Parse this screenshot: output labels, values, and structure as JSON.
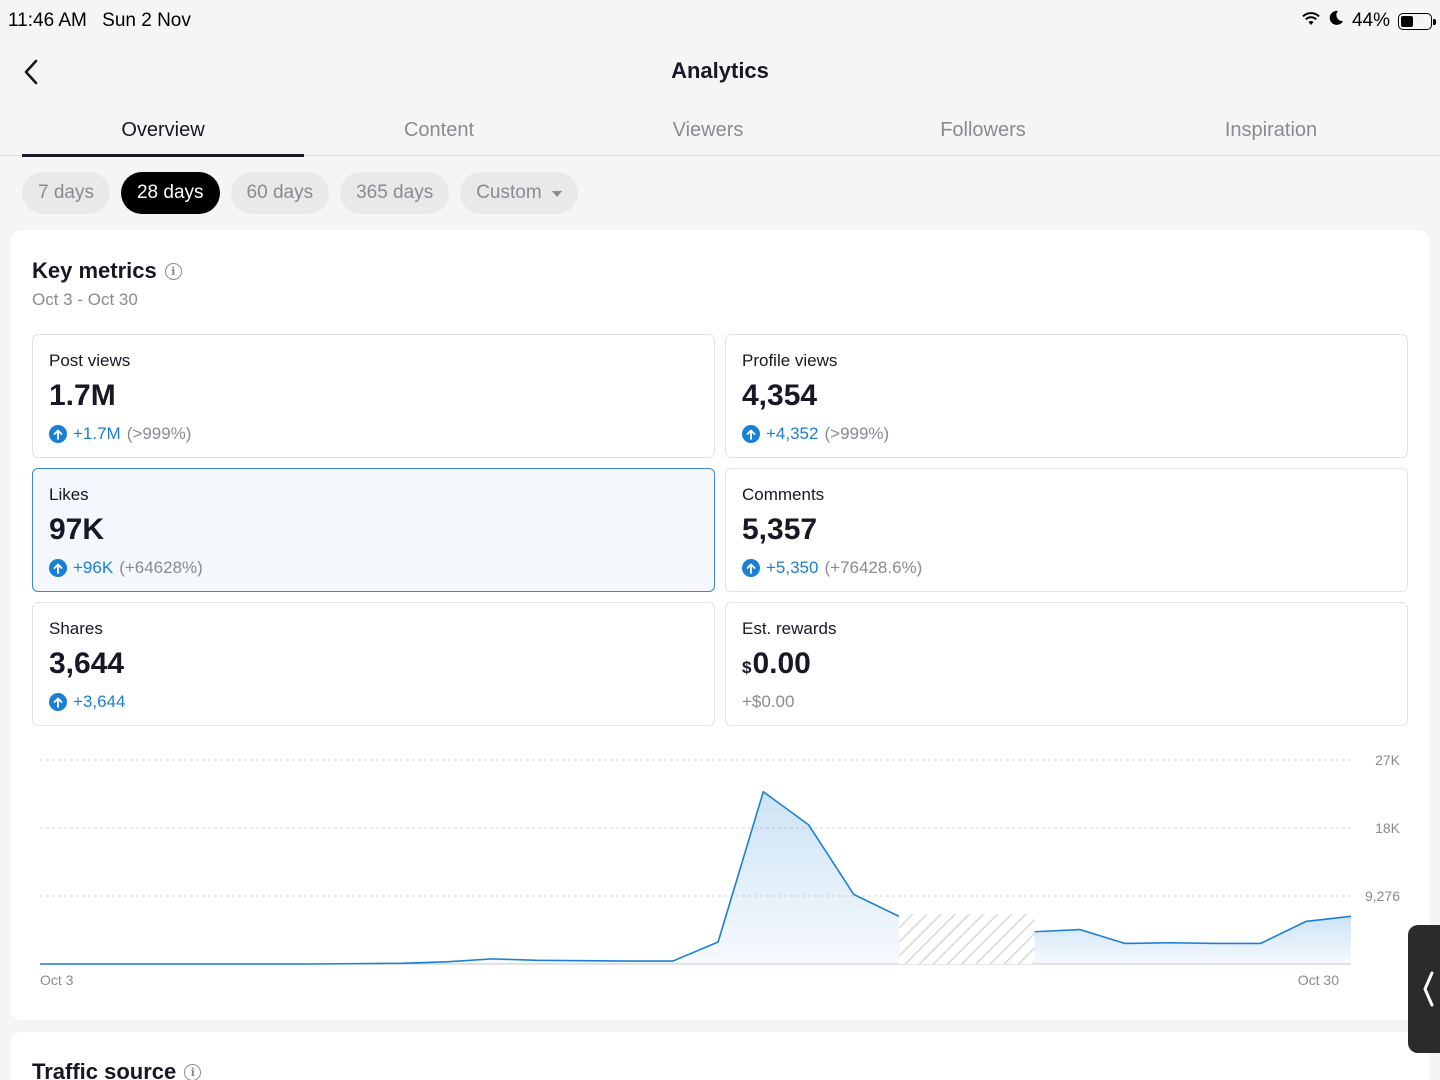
{
  "status_bar": {
    "time": "11:46 AM",
    "date": "Sun 2 Nov",
    "battery": "44%",
    "battery_level": 0.44,
    "icons": [
      "wifi-icon",
      "moon-icon",
      "battery-icon"
    ]
  },
  "header": {
    "title": "Analytics",
    "back_icon": "chevron-left-icon"
  },
  "tabs": [
    {
      "label": "Overview",
      "active": true
    },
    {
      "label": "Content",
      "active": false
    },
    {
      "label": "Viewers",
      "active": false
    },
    {
      "label": "Followers",
      "active": false
    },
    {
      "label": "Inspiration",
      "active": false
    }
  ],
  "periods": [
    {
      "label": "7 days",
      "active": false
    },
    {
      "label": "28 days",
      "active": true
    },
    {
      "label": "60 days",
      "active": false
    },
    {
      "label": "365 days",
      "active": false
    },
    {
      "label": "Custom",
      "active": false
    }
  ],
  "key_metrics": {
    "title": "Key metrics",
    "date_range": "Oct 3 - Oct 30",
    "metrics": [
      {
        "label": "Post views",
        "value": "1.7M",
        "delta": "+1.7M",
        "percent": "(>999%)"
      },
      {
        "label": "Profile views",
        "value": "4,354",
        "delta": "+4,352",
        "percent": "(>999%)"
      },
      {
        "label": "Likes",
        "value": "97K",
        "delta": "+96K",
        "percent": "(+64628%)",
        "selected": true
      },
      {
        "label": "Comments",
        "value": "5,357",
        "delta": "+5,350",
        "percent": "(+76428.6%)"
      },
      {
        "label": "Shares",
        "value": "3,644",
        "delta": "+3,644",
        "percent": ""
      },
      {
        "label": "Est. rewards",
        "currency": "$",
        "value": "0.00",
        "delta": "+$0.00",
        "percent": ""
      }
    ]
  },
  "chart_data": {
    "type": "area",
    "title": "",
    "x_start_label": "Oct 3",
    "x_end_label": "Oct 30",
    "y_ticks": [
      "27K",
      "18K",
      "9,276"
    ],
    "ylim": [
      0,
      27828
    ],
    "accent_color": "#1b7fd3",
    "values": [
      0,
      0,
      0,
      0,
      0,
      0,
      0,
      50,
      100,
      300,
      700,
      500,
      450,
      400,
      400,
      3000,
      23500,
      19000,
      9500,
      6500,
      null,
      null,
      4400,
      4700,
      2800,
      2900,
      2800,
      2800,
      5800,
      6500
    ],
    "missing_segment": [
      19,
      22
    ]
  },
  "traffic_source": {
    "title": "Traffic source"
  }
}
